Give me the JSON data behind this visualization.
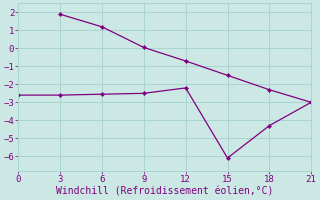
{
  "line1_x": [
    3,
    6,
    9,
    12,
    15,
    18,
    21
  ],
  "line1_y": [
    1.9,
    1.2,
    0.05,
    -0.7,
    -1.5,
    -2.3,
    -3.0
  ],
  "line2_x": [
    0,
    3,
    6,
    9,
    12,
    15,
    18,
    21
  ],
  "line2_y": [
    -2.6,
    -2.6,
    -2.55,
    -2.5,
    -2.2,
    -6.1,
    -4.3,
    -3.0
  ],
  "line_color": "#800080",
  "bg_color": "#cce8e4",
  "grid_color": "#a8d4d0",
  "xlabel": "Windchill (Refroidissement éolien,°C)",
  "xlim": [
    0,
    21
  ],
  "ylim": [
    -6.8,
    2.5
  ],
  "xticks": [
    0,
    3,
    6,
    9,
    12,
    15,
    18,
    21
  ],
  "yticks": [
    -6,
    -5,
    -4,
    -3,
    -2,
    -1,
    0,
    1,
    2
  ],
  "tick_color": "#800080",
  "xlabel_color": "#800080",
  "font": "monospace",
  "tick_fontsize": 6.5,
  "xlabel_fontsize": 7,
  "linewidth": 0.9,
  "markersize": 2.5
}
